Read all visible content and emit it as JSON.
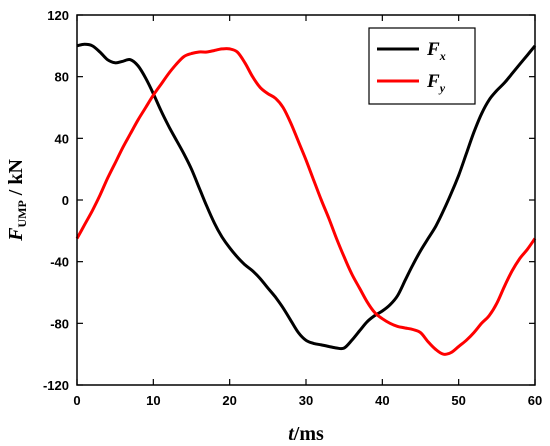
{
  "chart_data": {
    "type": "line",
    "xlabel": {
      "var": "t",
      "unit": "/ms"
    },
    "ylabel": {
      "var": "F",
      "sub": "UMP",
      "unit": " / kN"
    },
    "xlim": [
      0,
      60
    ],
    "ylim": [
      -120,
      120
    ],
    "xticks": [
      0,
      10,
      20,
      30,
      40,
      50,
      60
    ],
    "yticks": [
      -120,
      -80,
      -40,
      0,
      40,
      80,
      120
    ],
    "grid": false,
    "legend_position": "top-right",
    "series": [
      {
        "name": "Fx",
        "name_main": "F",
        "name_sub": "x",
        "color": "#000000",
        "x": [
          0,
          1,
          2,
          3,
          4,
          5,
          6,
          7,
          8,
          9,
          10,
          11,
          12,
          13,
          14,
          15,
          16,
          17,
          18,
          19,
          20,
          21,
          22,
          23,
          24,
          25,
          26,
          27,
          28,
          29,
          30,
          31,
          32,
          33,
          34,
          35,
          36,
          37,
          38,
          39,
          40,
          41,
          42,
          43,
          44,
          45,
          46,
          47,
          48,
          49,
          50,
          51,
          52,
          53,
          54,
          55,
          56,
          57,
          58,
          59,
          60
        ],
        "y": [
          100,
          101,
          100,
          96,
          91,
          89,
          90,
          91,
          87,
          79,
          69,
          58,
          48,
          39,
          30,
          20,
          8,
          -4,
          -15,
          -24,
          -31,
          -37,
          -42,
          -46,
          -51,
          -57,
          -63,
          -70,
          -78,
          -86,
          -91,
          -93,
          -94,
          -95,
          -96,
          -96,
          -91,
          -85,
          -79,
          -75,
          -72,
          -68,
          -62,
          -52,
          -42,
          -33,
          -25,
          -17,
          -7,
          4,
          16,
          30,
          44,
          56,
          65,
          71,
          76,
          82,
          88,
          94,
          100
        ]
      },
      {
        "name": "Fy",
        "name_main": "F",
        "name_sub": "y",
        "color": "#ff0000",
        "x": [
          0,
          1,
          2,
          3,
          4,
          5,
          6,
          7,
          8,
          9,
          10,
          11,
          12,
          13,
          14,
          15,
          16,
          17,
          18,
          19,
          20,
          21,
          22,
          23,
          24,
          25,
          26,
          27,
          28,
          29,
          30,
          31,
          32,
          33,
          34,
          35,
          36,
          37,
          38,
          39,
          40,
          41,
          42,
          43,
          44,
          45,
          46,
          47,
          48,
          49,
          50,
          51,
          52,
          53,
          54,
          55,
          56,
          57,
          58,
          59,
          60
        ],
        "y": [
          -25,
          -16,
          -7,
          3,
          14,
          24,
          34,
          43,
          52,
          60,
          68,
          75,
          82,
          88,
          93,
          95,
          96,
          96,
          97,
          98,
          98,
          96,
          89,
          80,
          73,
          69,
          66,
          60,
          50,
          38,
          26,
          13,
          0,
          -12,
          -25,
          -37,
          -48,
          -57,
          -66,
          -73,
          -77,
          -80,
          -82,
          -83,
          -84,
          -86,
          -92,
          -97,
          -100,
          -99,
          -95,
          -91,
          -86,
          -80,
          -75,
          -67,
          -56,
          -46,
          -38,
          -32,
          -25
        ]
      }
    ]
  }
}
